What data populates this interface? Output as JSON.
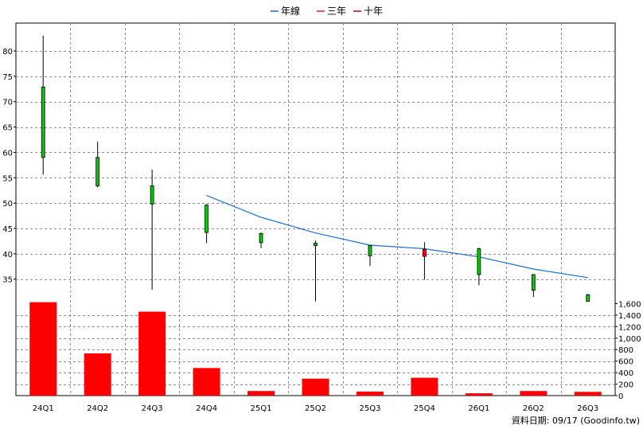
{
  "chart_data": {
    "type": "candlestick+bar",
    "legend": {
      "placement": "top-center",
      "items": [
        {
          "label": "年線",
          "color": "#1f6fd0"
        },
        {
          "label": "三年",
          "color": "#e02020"
        },
        {
          "label": "十年",
          "color": "#b0003a"
        }
      ]
    },
    "categories": [
      "24Q1",
      "24Q2",
      "24Q3",
      "24Q4",
      "25Q1",
      "25Q2",
      "25Q3",
      "25Q4",
      "26Q1",
      "26Q2",
      "26Q3"
    ],
    "price_axis": {
      "ylim": [
        30.4,
        85.5
      ],
      "ticks": [
        35,
        40,
        45,
        50,
        55,
        60,
        65,
        70,
        75,
        80
      ]
    },
    "volume_axis": {
      "ylim": [
        0,
        1620
      ],
      "ticks": [
        0,
        200,
        400,
        600,
        800,
        1000,
        1200,
        1400,
        1600
      ],
      "tick_labels": [
        "0",
        "200",
        "400",
        "600",
        "800",
        "1,000",
        "1,200",
        "1,400",
        "1,600"
      ]
    },
    "candles": [
      {
        "open": 72.9,
        "high": 83.0,
        "low": 55.6,
        "close": 59.0
      },
      {
        "open": 59.0,
        "high": 62.1,
        "low": 53.1,
        "close": 53.4
      },
      {
        "open": 53.4,
        "high": 56.6,
        "low": 32.9,
        "close": 49.8
      },
      {
        "open": 49.6,
        "high": 49.8,
        "low": 42.1,
        "close": 44.2
      },
      {
        "open": 44.0,
        "high": 44.2,
        "low": 41.1,
        "close": 42.2
      },
      {
        "open": 42.1,
        "high": 42.6,
        "low": 30.6,
        "close": 41.6
      },
      {
        "open": 41.6,
        "high": 41.7,
        "low": 37.6,
        "close": 39.6
      },
      {
        "open": 39.5,
        "high": 42.3,
        "low": 34.9,
        "close": 40.9
      },
      {
        "open": 41.0,
        "high": 41.2,
        "low": 33.8,
        "close": 35.9
      },
      {
        "open": 35.9,
        "high": 36.0,
        "low": 31.5,
        "close": 32.8
      },
      {
        "open": 31.9,
        "high": 32.1,
        "low": 30.6,
        "close": 30.6
      }
    ],
    "series": [
      {
        "name": "年線",
        "x": [
          "24Q4",
          "25Q1",
          "25Q2",
          "25Q3",
          "25Q4",
          "26Q1",
          "26Q2",
          "26Q3"
        ],
        "values": [
          51.5,
          47.2,
          44.1,
          41.7,
          41.0,
          39.4,
          37.0,
          35.3
        ]
      }
    ],
    "volume": [
      1625,
      735,
      1460,
      480,
      80,
      295,
      70,
      310,
      40,
      80,
      65
    ],
    "grid": true
  },
  "footer": {
    "date_stamp": "資料日期: 09/17  (Goodinfo.tw)"
  }
}
